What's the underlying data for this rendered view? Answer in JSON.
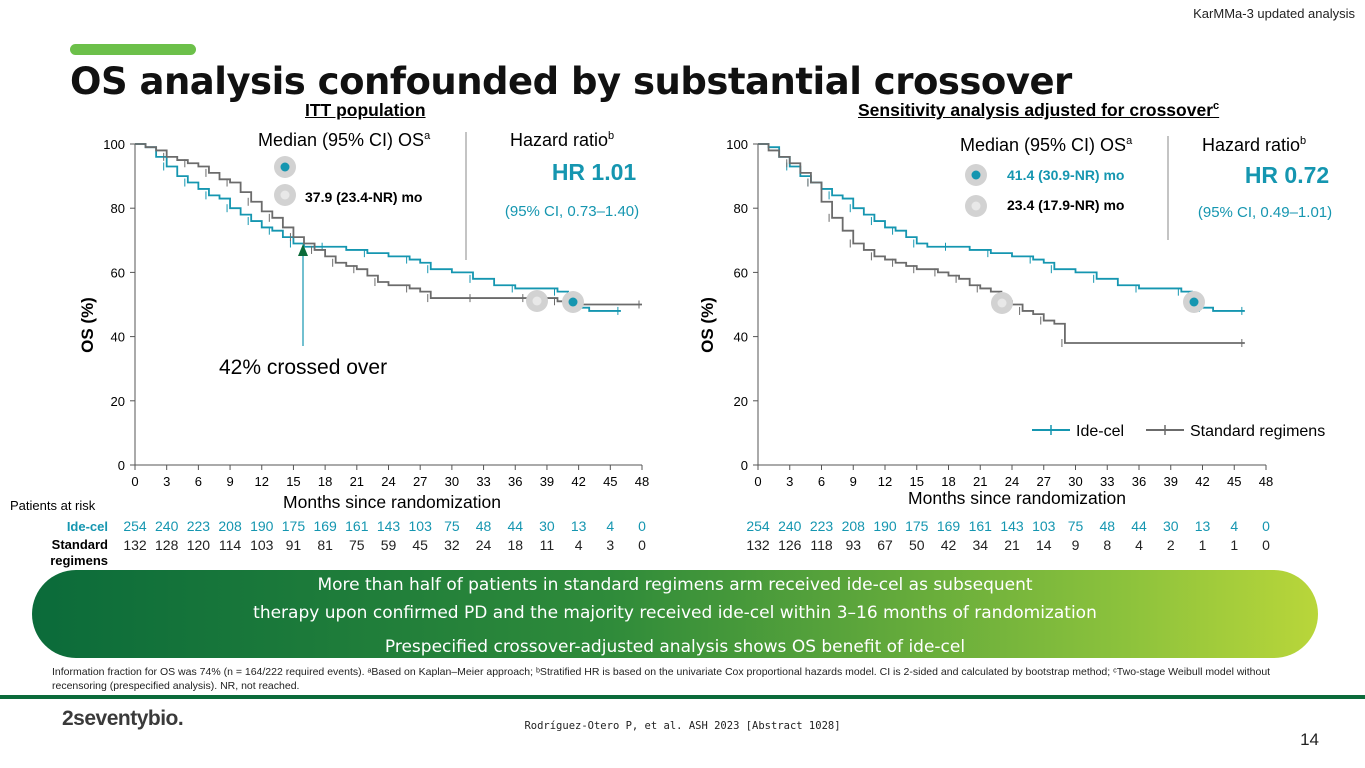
{
  "header": {
    "tag": "KarMMa-3 updated analysis",
    "title": "OS analysis confounded by substantial crossover"
  },
  "colors": {
    "idecel": "#1596b0",
    "standard": "#6b6b6b",
    "green": "#0b6b3a",
    "accent": "#6cc04a"
  },
  "left_panel": {
    "subtitle": "ITT population",
    "median_label": "Median (95% CI) OS",
    "median_sup": "a",
    "median_value": "37.9 (23.4-NR) mo",
    "hr_label": "Hazard ratio",
    "hr_sup": "b",
    "hr_value": "HR 1.01",
    "hr_ci": "(95% CI, 0.73–1.40)",
    "crossover_note": "42% crossed over"
  },
  "right_panel": {
    "subtitle": "Sensitivity analysis adjusted for crossover",
    "subtitle_sup": "c",
    "median_label": "Median (95% CI) OS",
    "median_sup": "a",
    "median_idecel": "41.4 (30.9-NR) mo",
    "median_standard": "23.4 (17.9-NR) mo",
    "hr_label": "Hazard ratio",
    "hr_sup": "b",
    "hr_value": "HR 0.72",
    "hr_ci": "(95% CI, 0.49–1.01)",
    "legend_idecel": "Ide-cel",
    "legend_standard": "Standard regimens"
  },
  "chart_data": [
    {
      "type": "line",
      "title": "ITT population",
      "xlabel": "Months since randomization",
      "ylabel": "OS (%)",
      "xlim": [
        0,
        48
      ],
      "ylim": [
        0,
        100
      ],
      "xticks": [
        0,
        3,
        6,
        9,
        12,
        15,
        18,
        21,
        24,
        27,
        30,
        33,
        36,
        39,
        42,
        45,
        48
      ],
      "yticks": [
        0,
        20,
        40,
        60,
        80,
        100
      ],
      "series": [
        {
          "name": "Ide-cel",
          "x": [
            0,
            1,
            2,
            3,
            4,
            5,
            6,
            7,
            8,
            9,
            10,
            11,
            12,
            13,
            14,
            15,
            16,
            18,
            20,
            22,
            24,
            26,
            27,
            28,
            30,
            32,
            34,
            36,
            38,
            40,
            41,
            42,
            43,
            46
          ],
          "y": [
            100,
            99,
            96,
            93,
            90,
            88,
            86,
            84,
            83,
            80,
            78,
            76,
            74,
            73,
            71,
            69,
            68,
            68,
            67,
            66,
            65,
            64,
            63,
            61,
            60,
            58,
            56,
            55,
            55,
            54,
            51,
            49,
            48,
            48
          ]
        },
        {
          "name": "Standard regimens",
          "x": [
            0,
            1,
            2,
            3,
            4,
            5,
            6,
            7,
            8,
            9,
            10,
            11,
            12,
            13,
            14,
            15,
            16,
            17,
            18,
            19,
            20,
            21,
            22,
            23,
            24,
            26,
            27,
            28,
            30,
            32,
            35,
            37,
            38,
            40,
            42,
            48
          ],
          "y": [
            100,
            99,
            98,
            96,
            95,
            94,
            93,
            91,
            89,
            88,
            85,
            82,
            79,
            77,
            74,
            71,
            69,
            67,
            65,
            63,
            62,
            61,
            59,
            57,
            56,
            55,
            54,
            52,
            52,
            52,
            52,
            52,
            52,
            51,
            50,
            50
          ]
        }
      ],
      "risk_table": {
        "label": "Patients at risk",
        "rows": [
          {
            "name": "Ide-cel",
            "values": [
              "254",
              "240",
              "223",
              "208",
              "190",
              "175",
              "169",
              "161",
              "143",
              "103",
              "75",
              "48",
              "44",
              "30",
              "13",
              "4",
              "0"
            ]
          },
          {
            "name": "Standard regimens",
            "values": [
              "132",
              "128",
              "120",
              "114",
              "103",
              "91",
              "81",
              "75",
              "59",
              "45",
              "32",
              "24",
              "18",
              "11",
              "4",
              "3",
              "0"
            ]
          }
        ]
      }
    },
    {
      "type": "line",
      "title": "Sensitivity analysis adjusted for crossover",
      "xlabel": "Months since randomization",
      "ylabel": "OS (%)",
      "xlim": [
        0,
        48
      ],
      "ylim": [
        0,
        100
      ],
      "xticks": [
        0,
        3,
        6,
        9,
        12,
        15,
        18,
        21,
        24,
        27,
        30,
        33,
        36,
        39,
        42,
        45,
        48
      ],
      "yticks": [
        0,
        20,
        40,
        60,
        80,
        100
      ],
      "legend": [
        "Ide-cel",
        "Standard regimens"
      ],
      "series": [
        {
          "name": "Ide-cel",
          "x": [
            0,
            1,
            2,
            3,
            4,
            5,
            6,
            7,
            8,
            9,
            10,
            11,
            12,
            13,
            14,
            15,
            16,
            18,
            20,
            22,
            24,
            26,
            27,
            28,
            30,
            32,
            34,
            36,
            38,
            40,
            41,
            42,
            43,
            46
          ],
          "y": [
            100,
            99,
            96,
            93,
            90,
            88,
            86,
            84,
            83,
            80,
            78,
            76,
            74,
            73,
            71,
            69,
            68,
            68,
            67,
            66,
            65,
            64,
            63,
            61,
            60,
            58,
            56,
            55,
            55,
            54,
            51,
            49,
            48,
            48
          ]
        },
        {
          "name": "Standard regimens",
          "x": [
            0,
            1,
            2,
            3,
            4,
            5,
            6,
            7,
            8,
            9,
            10,
            11,
            12,
            13,
            14,
            15,
            16,
            17,
            18,
            19,
            20,
            21,
            22,
            23,
            24,
            25,
            26,
            27,
            28,
            29,
            30,
            46
          ],
          "y": [
            100,
            98,
            96,
            94,
            91,
            88,
            82,
            77,
            73,
            69,
            67,
            65,
            64,
            63,
            62,
            61,
            61,
            60,
            59,
            58,
            56,
            55,
            54,
            51,
            50,
            48,
            47,
            45,
            44,
            38,
            38,
            38
          ]
        }
      ],
      "risk_table": {
        "rows": [
          {
            "name": "Ide-cel",
            "values": [
              "254",
              "240",
              "223",
              "208",
              "190",
              "175",
              "169",
              "161",
              "143",
              "103",
              "75",
              "48",
              "44",
              "30",
              "13",
              "4",
              "0"
            ]
          },
          {
            "name": "Standard regimens",
            "values": [
              "132",
              "126",
              "118",
              "93",
              "67",
              "50",
              "42",
              "34",
              "21",
              "14",
              "9",
              "8",
              "4",
              "2",
              "1",
              "1",
              "0"
            ]
          }
        ]
      }
    }
  ],
  "risk_labels": {
    "header": "Patients at risk",
    "idecel": "Ide-cel",
    "standard_line1": "Standard",
    "standard_line2": "regimens"
  },
  "banner": {
    "line1": "More than half of patients in standard regimens arm received ide-cel as subsequent",
    "line2": "therapy upon confirmed PD and the majority received ide-cel within 3–16 months of randomization",
    "line3": "Prespecified crossover-adjusted analysis shows OS benefit of ide-cel"
  },
  "footnote": "Information fraction for OS was 74% (n = 164/222 required events). ᵃBased on Kaplan–Meier approach; ᵇStratified HR is based on the univariate Cox proportional hazards model. CI is 2-sided and calculated by bootstrap method; ᶜTwo-stage Weibull model without recensoring (prespecified analysis). NR, not reached.",
  "footer": {
    "logo": "2seventybio.",
    "citation": "Rodríguez-Otero P, et al. ASH 2023 [Abstract 1028]",
    "page_number": "14"
  }
}
